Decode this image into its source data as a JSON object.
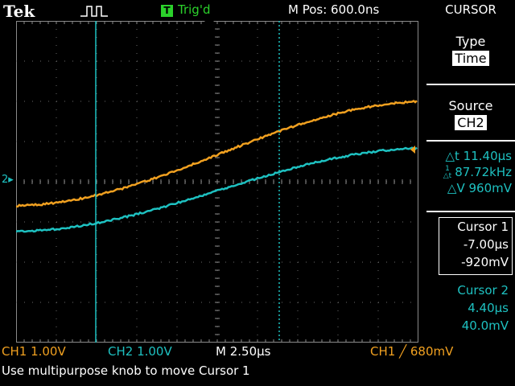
{
  "header": {
    "brand": "Tek",
    "trigger_box": "T",
    "trigger_status": "Trig'd",
    "m_pos": "M Pos: 600.0ns"
  },
  "side_menu": {
    "title": "CURSOR",
    "type_label": "Type",
    "type_value": "Time",
    "source_label": "Source",
    "source_value": "CH2"
  },
  "readout": {
    "delta_t": "△t 11.40µs",
    "inv_delta_t": "87.72kHz",
    "delta_v": "△V 960mV"
  },
  "cursor1": {
    "label": "Cursor 1",
    "time": "-7.00µs",
    "volts": "-920mV"
  },
  "cursor2": {
    "label": "Cursor 2",
    "time": "4.40µs",
    "volts": "40.0mV"
  },
  "footer": {
    "ch1_scale": "CH1  1.00V",
    "ch2_scale": "CH2  1.00V",
    "timebase": "M 2.50µs",
    "trigger_info": "CH1 ╱ 680mV",
    "message": "Use multipurpose knob to move Cursor 1"
  },
  "channel_marker": "2",
  "colors": {
    "ch1": "#f0a020",
    "ch2": "#1ec1c1",
    "grid": "#8a8a8a",
    "trig": "#2bd12b"
  }
}
